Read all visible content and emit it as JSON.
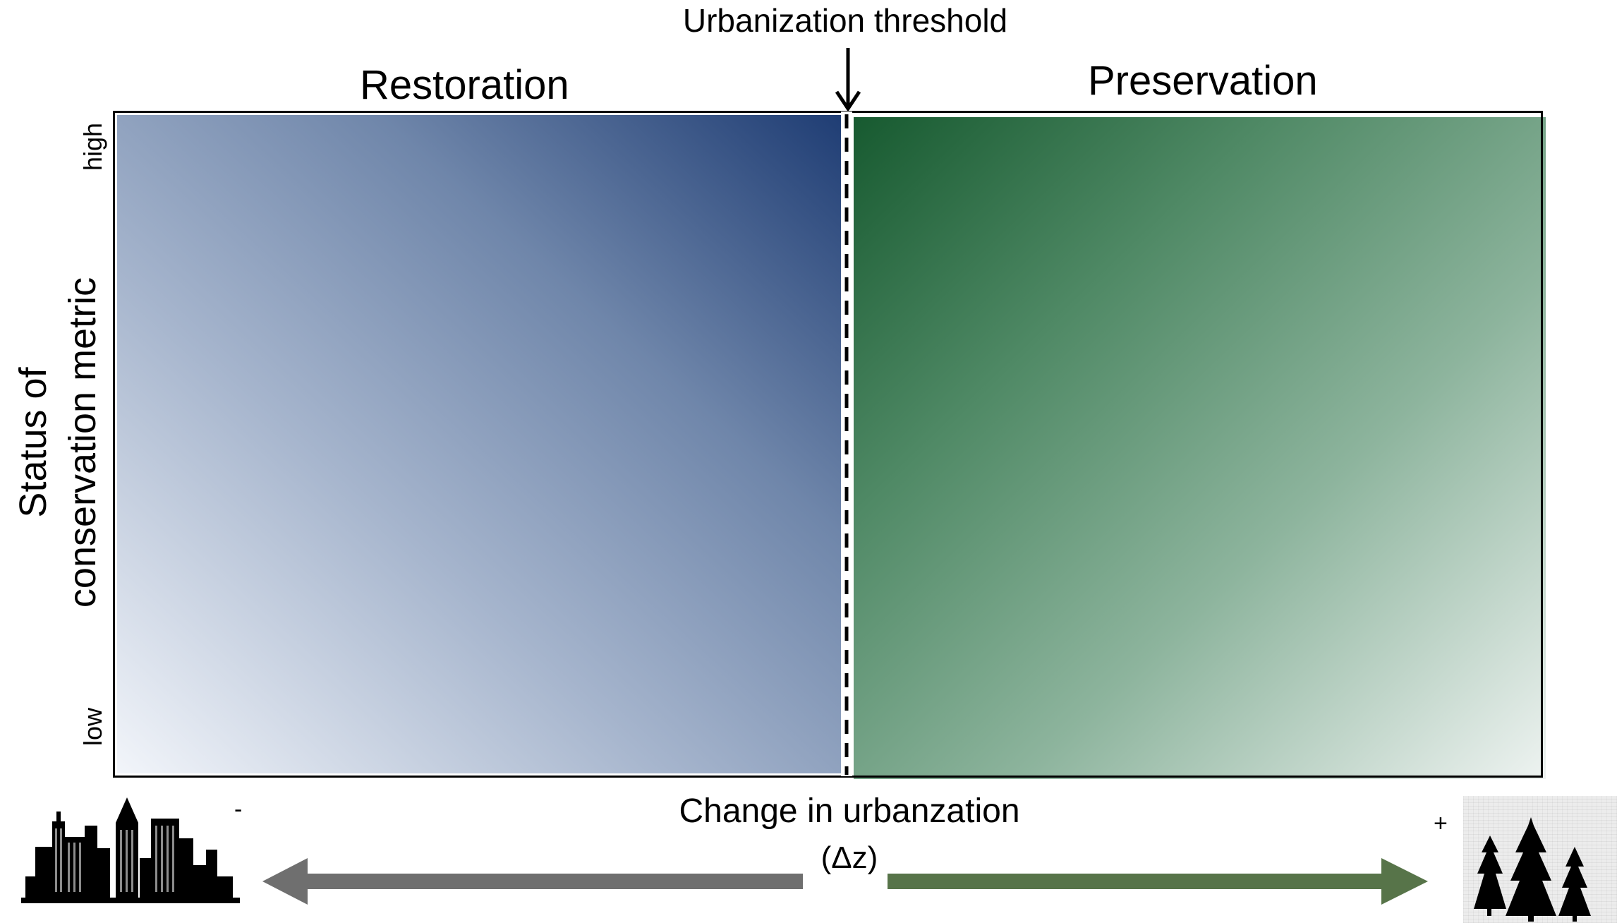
{
  "diagram": {
    "threshold_label": "Urbanization threshold",
    "left_region_label": "Restoration",
    "right_region_label": "Preservation",
    "y_axis": {
      "title_line1": "Status of",
      "title_line2": "conservation metric",
      "tick_high": "high",
      "tick_low": "low"
    },
    "x_axis": {
      "title": "Change in urbanzation",
      "subtitle": "(Δz)",
      "minus_sign": "-",
      "plus_sign": "+"
    },
    "colors": {
      "restoration_dark": "#1f3d74",
      "restoration_light": "#f2f5fa",
      "preservation_dark": "#175a30",
      "preservation_light": "#eef3f1",
      "left_arrow": "#6f6f6f",
      "right_arrow": "#577449"
    },
    "icons": {
      "left": "city-skyline-icon",
      "right": "pine-trees-icon",
      "threshold": "arrow-down-icon"
    }
  }
}
